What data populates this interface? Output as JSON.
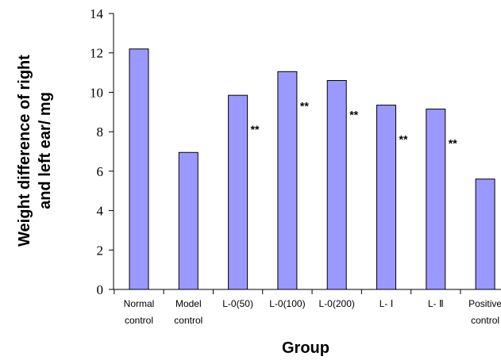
{
  "chart_data": {
    "type": "bar",
    "title": "",
    "xlabel": "Group",
    "ylabel_lines": [
      "Weight difference of right",
      "and left ear/ mg"
    ],
    "ylim": [
      0,
      14
    ],
    "yticks": [
      "0",
      "2",
      "4",
      "6",
      "8",
      "10",
      "12",
      "14"
    ],
    "categories": [
      [
        "Normal",
        "control"
      ],
      [
        "Model",
        "control"
      ],
      [
        "L-0(50)"
      ],
      [
        "L-0(100)"
      ],
      [
        "L-0(200)"
      ],
      [
        "L- Ⅰ"
      ],
      [
        "L- Ⅱ"
      ],
      [
        "Positive",
        "control"
      ]
    ],
    "values": [
      12.2,
      6.95,
      9.85,
      11.05,
      10.6,
      9.35,
      9.15,
      5.6
    ],
    "significance": [
      "",
      "",
      "**",
      "**",
      "**",
      "**",
      "**",
      ""
    ],
    "bar_color": "#9999ff",
    "bar_edge_color": "#000000",
    "grid": false
  }
}
